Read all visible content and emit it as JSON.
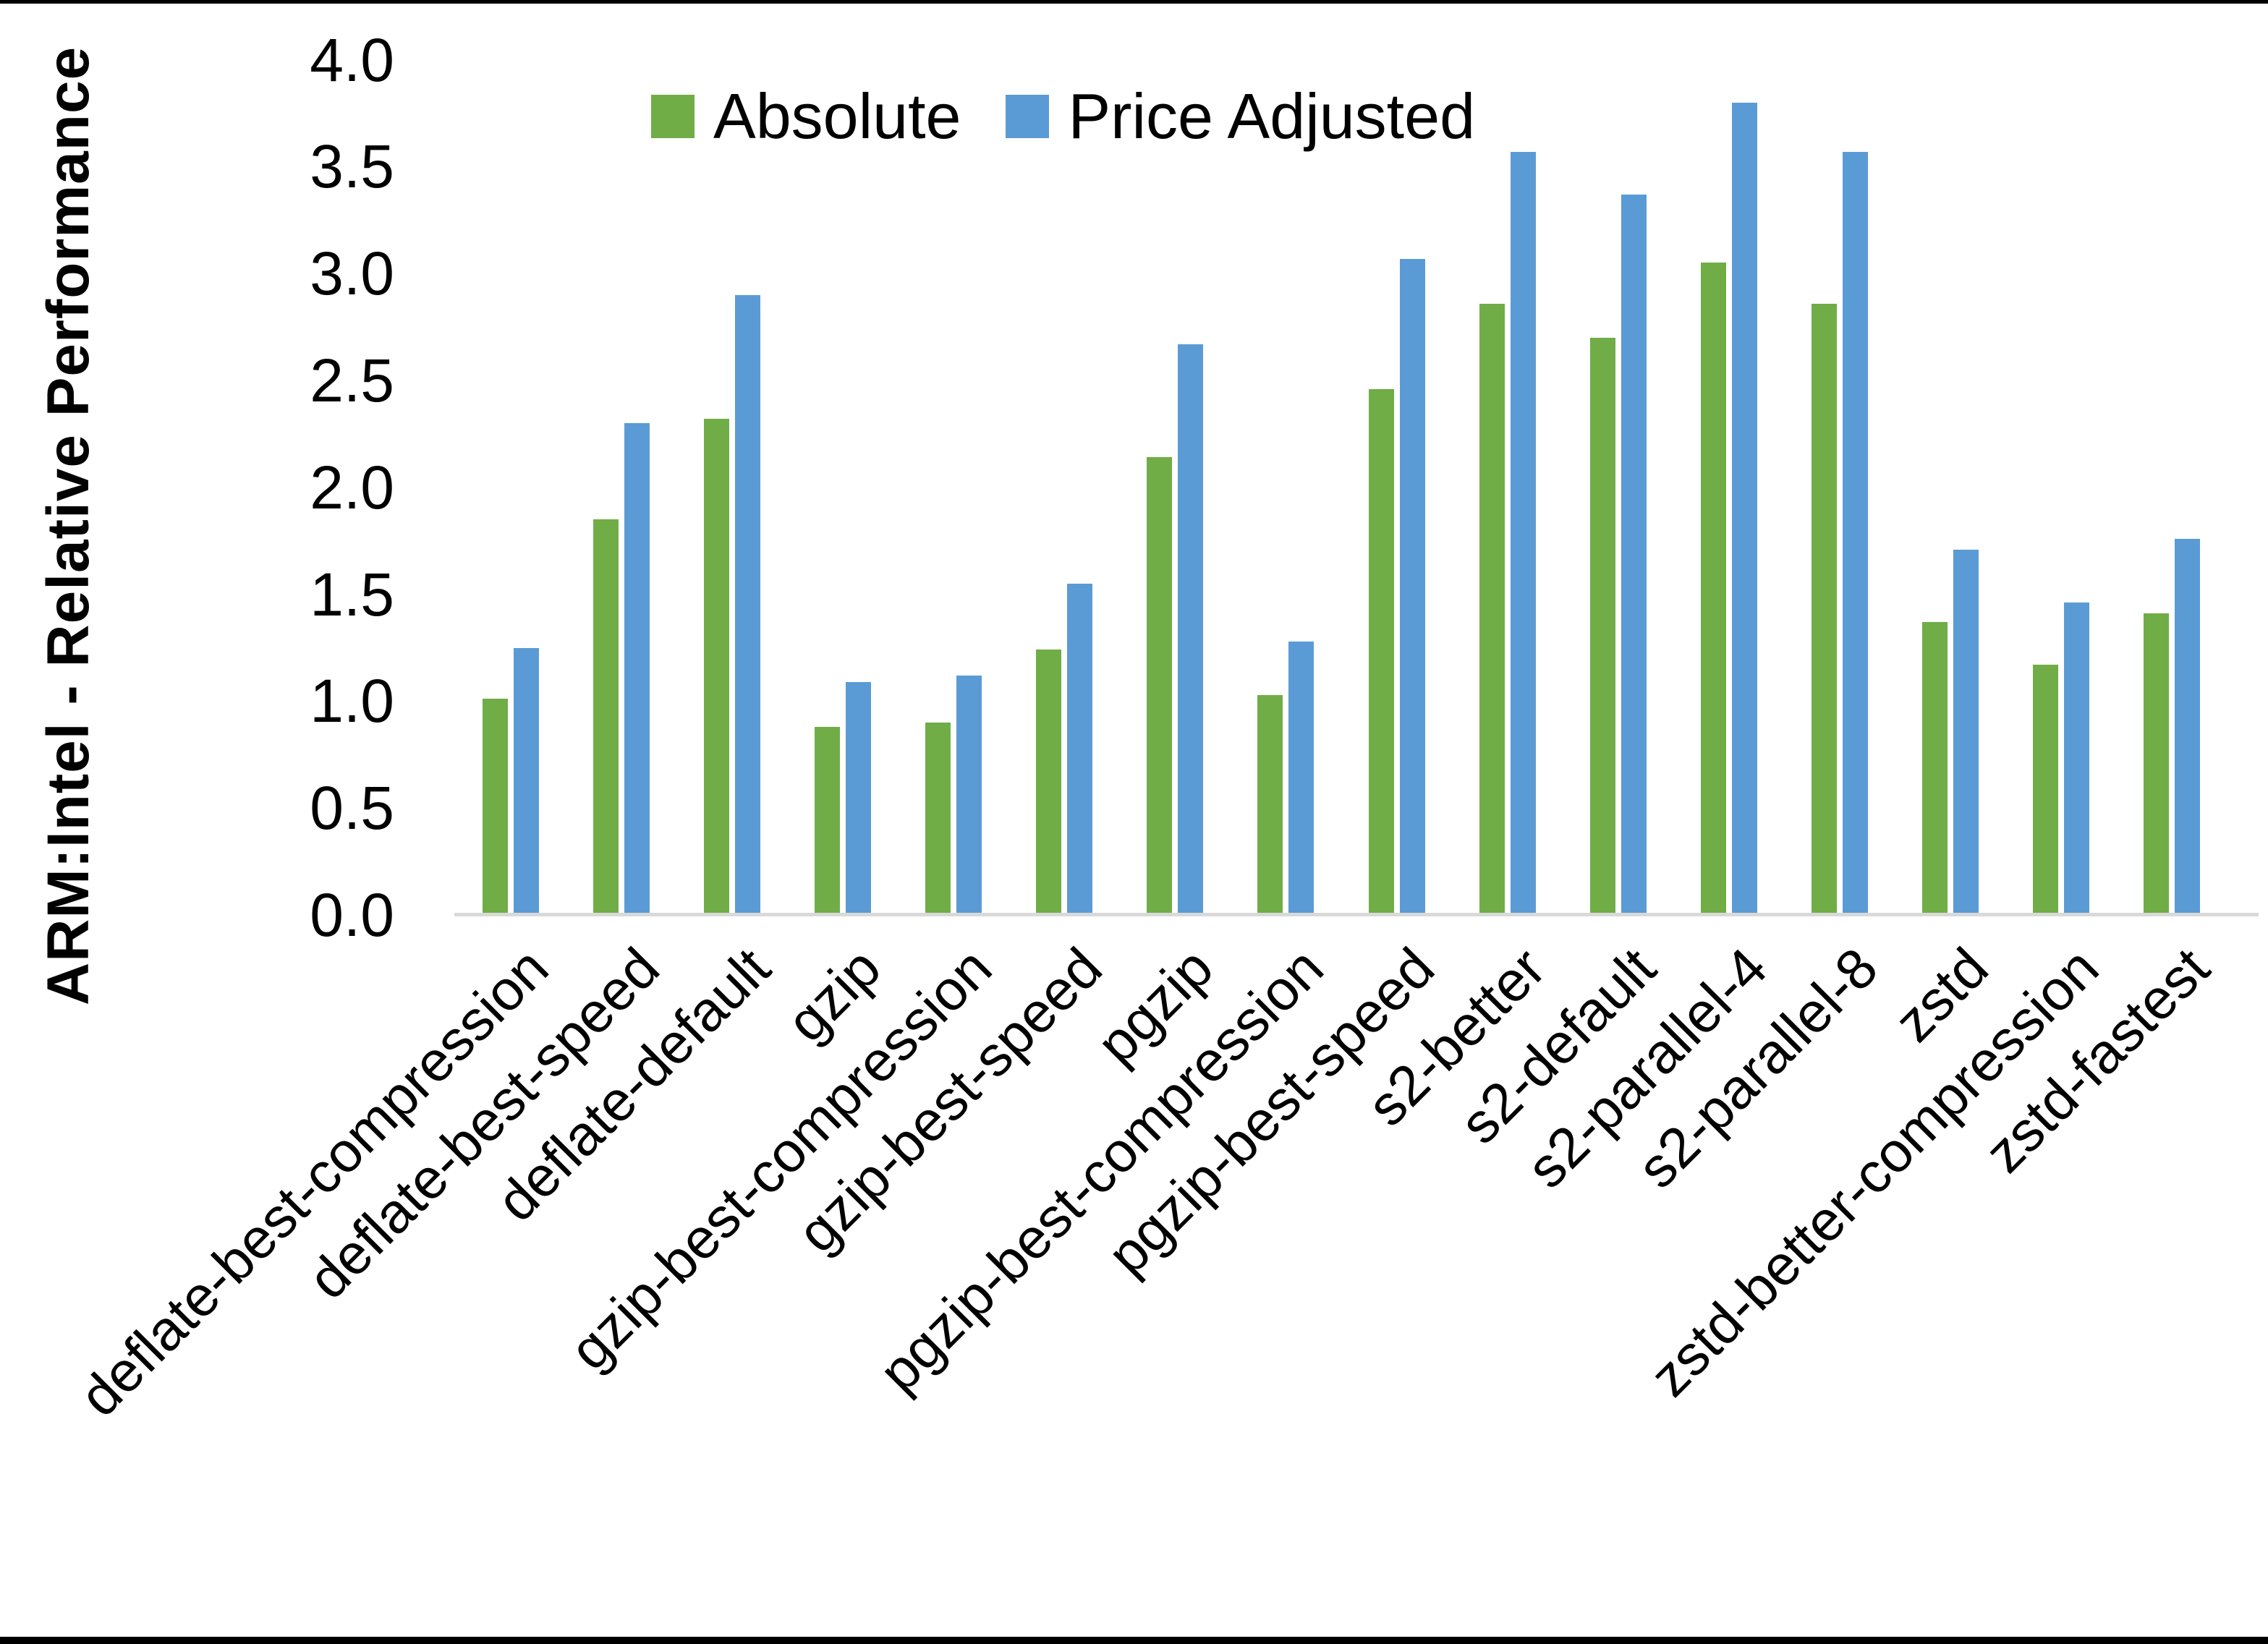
{
  "chart_data": {
    "type": "bar",
    "title": "",
    "ylabel": "ARM:Intel - Relative Performance",
    "xlabel": "",
    "ylim": [
      0.0,
      4.0
    ],
    "ytick_step": 0.5,
    "ytick_labels": [
      "0.0",
      "0.5",
      "1.0",
      "1.5",
      "2.0",
      "2.5",
      "3.0",
      "3.5",
      "4.0"
    ],
    "grid": false,
    "legend_position": "top-center",
    "axis_line_color": "#d9d9d9",
    "text_color": "#000000",
    "categories": [
      "deflate-best-compression",
      "deflate-best-speed",
      "deflate-default",
      "gzip",
      "gzip-best-compression",
      "gzip-best-speed",
      "pgzip",
      "pgzip-best-compression",
      "pgzip-best-speed",
      "s2-better",
      "s2-default",
      "s2-parallel-4",
      "s2-parallel-8",
      "zstd",
      "zstd-better-compression",
      "zstd-fastest"
    ],
    "series": [
      {
        "name": "Absolute",
        "color": "#70ad47",
        "values": [
          1.01,
          1.85,
          2.32,
          0.88,
          0.9,
          1.24,
          2.14,
          1.03,
          2.46,
          2.86,
          2.7,
          3.05,
          2.86,
          1.37,
          1.17,
          1.41
        ]
      },
      {
        "name": "Price Adjusted",
        "color": "#5b9bd5",
        "values": [
          1.25,
          2.3,
          2.9,
          1.09,
          1.12,
          1.55,
          2.67,
          1.28,
          3.07,
          3.57,
          3.37,
          3.8,
          3.57,
          1.71,
          1.46,
          1.76
        ]
      }
    ]
  }
}
